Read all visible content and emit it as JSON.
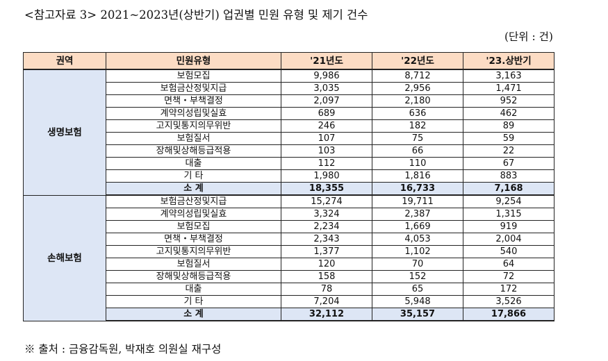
{
  "title": "<참고자료 3> 2021~2023년(상반기) 업권별 민원 유형 및 제기 건수",
  "unit": "(단위 : 건)",
  "columns": [
    "권역",
    "민원유형",
    "'21년도",
    "'22년도",
    "'23.상반기"
  ],
  "sections": [
    {
      "region": "생명보험",
      "rows": [
        {
          "type": "보험모집",
          "y21": "9,986",
          "y22": "8,712",
          "y23h1": "3,163"
        },
        {
          "type": "보험금산정및지급",
          "y21": "3,035",
          "y22": "2,956",
          "y23h1": "1,471"
        },
        {
          "type": "면책・부책결정",
          "y21": "2,097",
          "y22": "2,180",
          "y23h1": "952"
        },
        {
          "type": "계약의성립및실효",
          "y21": "689",
          "y22": "636",
          "y23h1": "462"
        },
        {
          "type": "고지및통지의무위반",
          "y21": "246",
          "y22": "182",
          "y23h1": "89"
        },
        {
          "type": "보험질서",
          "y21": "107",
          "y22": "75",
          "y23h1": "59"
        },
        {
          "type": "장해및상해등급적용",
          "y21": "103",
          "y22": "66",
          "y23h1": "22"
        },
        {
          "type": "대출",
          "y21": "112",
          "y22": "110",
          "y23h1": "67"
        },
        {
          "type": "기 타",
          "y21": "1,980",
          "y22": "1,816",
          "y23h1": "883"
        }
      ],
      "subtotal": {
        "label": "소 계",
        "y21": "18,355",
        "y22": "16,733",
        "y23h1": "7,168"
      }
    },
    {
      "region": "손해보험",
      "rows": [
        {
          "type": "보험금산정및지급",
          "y21": "15,274",
          "y22": "19,711",
          "y23h1": "9,254"
        },
        {
          "type": "계약의성립및실효",
          "y21": "3,324",
          "y22": "2,387",
          "y23h1": "1,315"
        },
        {
          "type": "보험모집",
          "y21": "2,234",
          "y22": "1,669",
          "y23h1": "919"
        },
        {
          "type": "면책・부책결정",
          "y21": "2,343",
          "y22": "4,053",
          "y23h1": "2,004"
        },
        {
          "type": "고지및통지의무위반",
          "y21": "1,377",
          "y22": "1,102",
          "y23h1": "540"
        },
        {
          "type": "보험질서",
          "y21": "120",
          "y22": "70",
          "y23h1": "64"
        },
        {
          "type": "장해및상해등급적용",
          "y21": "158",
          "y22": "152",
          "y23h1": "72"
        },
        {
          "type": "대출",
          "y21": "78",
          "y22": "65",
          "y23h1": "172"
        },
        {
          "type": "기 타",
          "y21": "7,204",
          "y22": "5,948",
          "y23h1": "3,526"
        }
      ],
      "subtotal": {
        "label": "소 계",
        "y21": "32,112",
        "y22": "35,157",
        "y23h1": "17,866"
      }
    }
  ],
  "source": "※ 출처 : 금융감독원, 박재호 의원실 재구성"
}
